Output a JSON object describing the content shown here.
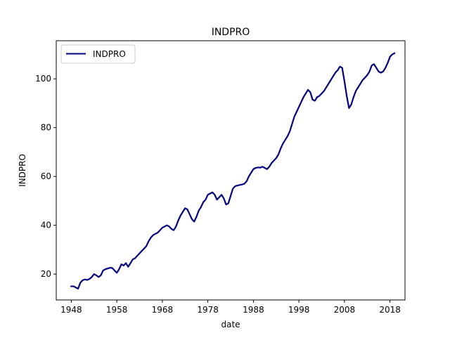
{
  "chart_data": {
    "type": "line",
    "title": "INDPRO",
    "xlabel": "date",
    "ylabel": "INDPRO",
    "xlim": [
      1944.7,
      2021.3
    ],
    "ylim": [
      9.4,
      115.6
    ],
    "x_ticks": [
      1948,
      1958,
      1968,
      1978,
      1988,
      1998,
      2008,
      2018
    ],
    "y_ticks": [
      20,
      40,
      60,
      80,
      100
    ],
    "grid": false,
    "legend_position": "top-left",
    "series": [
      {
        "name": "INDPRO",
        "color": "#000080",
        "x": [
          1948,
          1948.5,
          1949,
          1949.5,
          1950,
          1950.5,
          1951,
          1951.5,
          1952,
          1952.5,
          1953,
          1953.5,
          1954,
          1954.5,
          1955,
          1955.5,
          1956,
          1956.5,
          1957,
          1957.5,
          1958,
          1958.5,
          1959,
          1959.5,
          1960,
          1960.5,
          1961,
          1961.5,
          1962,
          1962.5,
          1963,
          1963.5,
          1964,
          1964.5,
          1965,
          1965.5,
          1966,
          1966.5,
          1967,
          1967.5,
          1968,
          1968.5,
          1969,
          1969.5,
          1970,
          1970.5,
          1971,
          1971.5,
          1972,
          1972.5,
          1973,
          1973.5,
          1974,
          1974.5,
          1975,
          1975.5,
          1976,
          1976.5,
          1977,
          1977.5,
          1978,
          1978.5,
          1979,
          1979.5,
          1980,
          1980.5,
          1981,
          1981.5,
          1982,
          1982.5,
          1983,
          1983.5,
          1984,
          1984.5,
          1985,
          1985.5,
          1986,
          1986.5,
          1987,
          1987.5,
          1988,
          1988.5,
          1989,
          1989.5,
          1990,
          1990.5,
          1991,
          1991.5,
          1992,
          1992.5,
          1993,
          1993.5,
          1994,
          1994.5,
          1995,
          1995.5,
          1996,
          1996.5,
          1997,
          1997.5,
          1998,
          1998.5,
          1999,
          1999.5,
          2000,
          2000.5,
          2001,
          2001.5,
          2002,
          2002.5,
          2003,
          2003.5,
          2004,
          2004.5,
          2005,
          2005.5,
          2006,
          2006.5,
          2007,
          2007.5,
          2008,
          2008.5,
          2009,
          2009.5,
          2010,
          2010.5,
          2011,
          2011.5,
          2012,
          2012.5,
          2013,
          2013.5,
          2014,
          2014.5,
          2015,
          2015.5,
          2016,
          2016.5,
          2017,
          2017.5,
          2018,
          2018.5,
          2019
        ],
        "values": [
          15.0,
          15.0,
          14.5,
          14.0,
          16.5,
          17.5,
          17.8,
          17.6,
          18.0,
          18.8,
          20.0,
          19.5,
          18.8,
          19.5,
          21.5,
          22.0,
          22.3,
          22.6,
          22.5,
          21.5,
          20.5,
          22.0,
          24.0,
          23.5,
          24.5,
          23.0,
          24.5,
          26.0,
          26.5,
          27.5,
          28.5,
          29.5,
          30.5,
          31.5,
          33.5,
          35.0,
          36.0,
          36.5,
          37.0,
          38.0,
          39.0,
          39.5,
          40.0,
          39.5,
          38.5,
          38.0,
          39.5,
          42.0,
          44.0,
          45.5,
          47.0,
          46.5,
          44.5,
          42.5,
          41.5,
          43.5,
          46.0,
          47.5,
          49.5,
          50.5,
          52.5,
          53.0,
          53.5,
          52.5,
          50.5,
          51.5,
          52.5,
          51.0,
          48.5,
          49.0,
          52.0,
          55.0,
          56.0,
          56.3,
          56.5,
          56.7,
          57.0,
          58.0,
          60.0,
          61.5,
          63.0,
          63.5,
          63.7,
          63.6,
          64.0,
          63.5,
          63.0,
          64.0,
          65.5,
          66.5,
          67.5,
          69.0,
          71.5,
          73.5,
          75.0,
          76.5,
          78.5,
          81.5,
          84.5,
          86.5,
          88.5,
          90.5,
          92.5,
          94.0,
          95.5,
          94.5,
          91.5,
          91.0,
          92.5,
          93.0,
          94.0,
          95.0,
          96.5,
          98.0,
          99.5,
          101.0,
          102.5,
          103.5,
          105.0,
          104.5,
          99.0,
          93.0,
          88.0,
          89.5,
          92.5,
          95.0,
          96.5,
          98.0,
          99.5,
          100.5,
          101.5,
          103.0,
          105.5,
          106.0,
          104.5,
          103.0,
          102.5,
          103.0,
          104.5,
          106.5,
          109.0,
          110.0,
          110.5
        ]
      }
    ]
  }
}
